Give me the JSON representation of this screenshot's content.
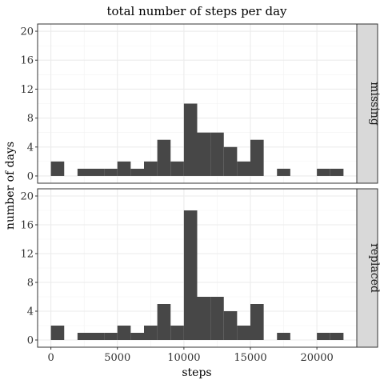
{
  "chart_data": {
    "type": "bar",
    "title": "total number of steps per day",
    "xlabel": "steps",
    "ylabel": "number of days",
    "xlim": [
      -1000,
      23000
    ],
    "ylim": [
      -1,
      21
    ],
    "x_ticks": [
      0,
      5000,
      10000,
      15000,
      20000
    ],
    "y_ticks": [
      0,
      4,
      8,
      12,
      16,
      20
    ],
    "bin_width": 1000,
    "bin_starts": [
      0,
      1000,
      2000,
      3000,
      4000,
      5000,
      6000,
      7000,
      8000,
      9000,
      10000,
      11000,
      12000,
      13000,
      14000,
      15000,
      16000,
      17000,
      18000,
      19000,
      20000,
      21000
    ],
    "facets": [
      {
        "label": "missing",
        "values": [
          2,
          0,
          1,
          1,
          1,
          2,
          1,
          2,
          5,
          2,
          10,
          6,
          6,
          4,
          2,
          5,
          0,
          1,
          0,
          0,
          1,
          1
        ]
      },
      {
        "label": "replaced",
        "values": [
          2,
          0,
          1,
          1,
          1,
          2,
          1,
          2,
          5,
          2,
          18,
          6,
          6,
          4,
          2,
          5,
          0,
          1,
          0,
          0,
          1,
          1
        ]
      }
    ],
    "bar_color": "#474747",
    "strip_color": "#d9d9d9",
    "grid": true
  }
}
